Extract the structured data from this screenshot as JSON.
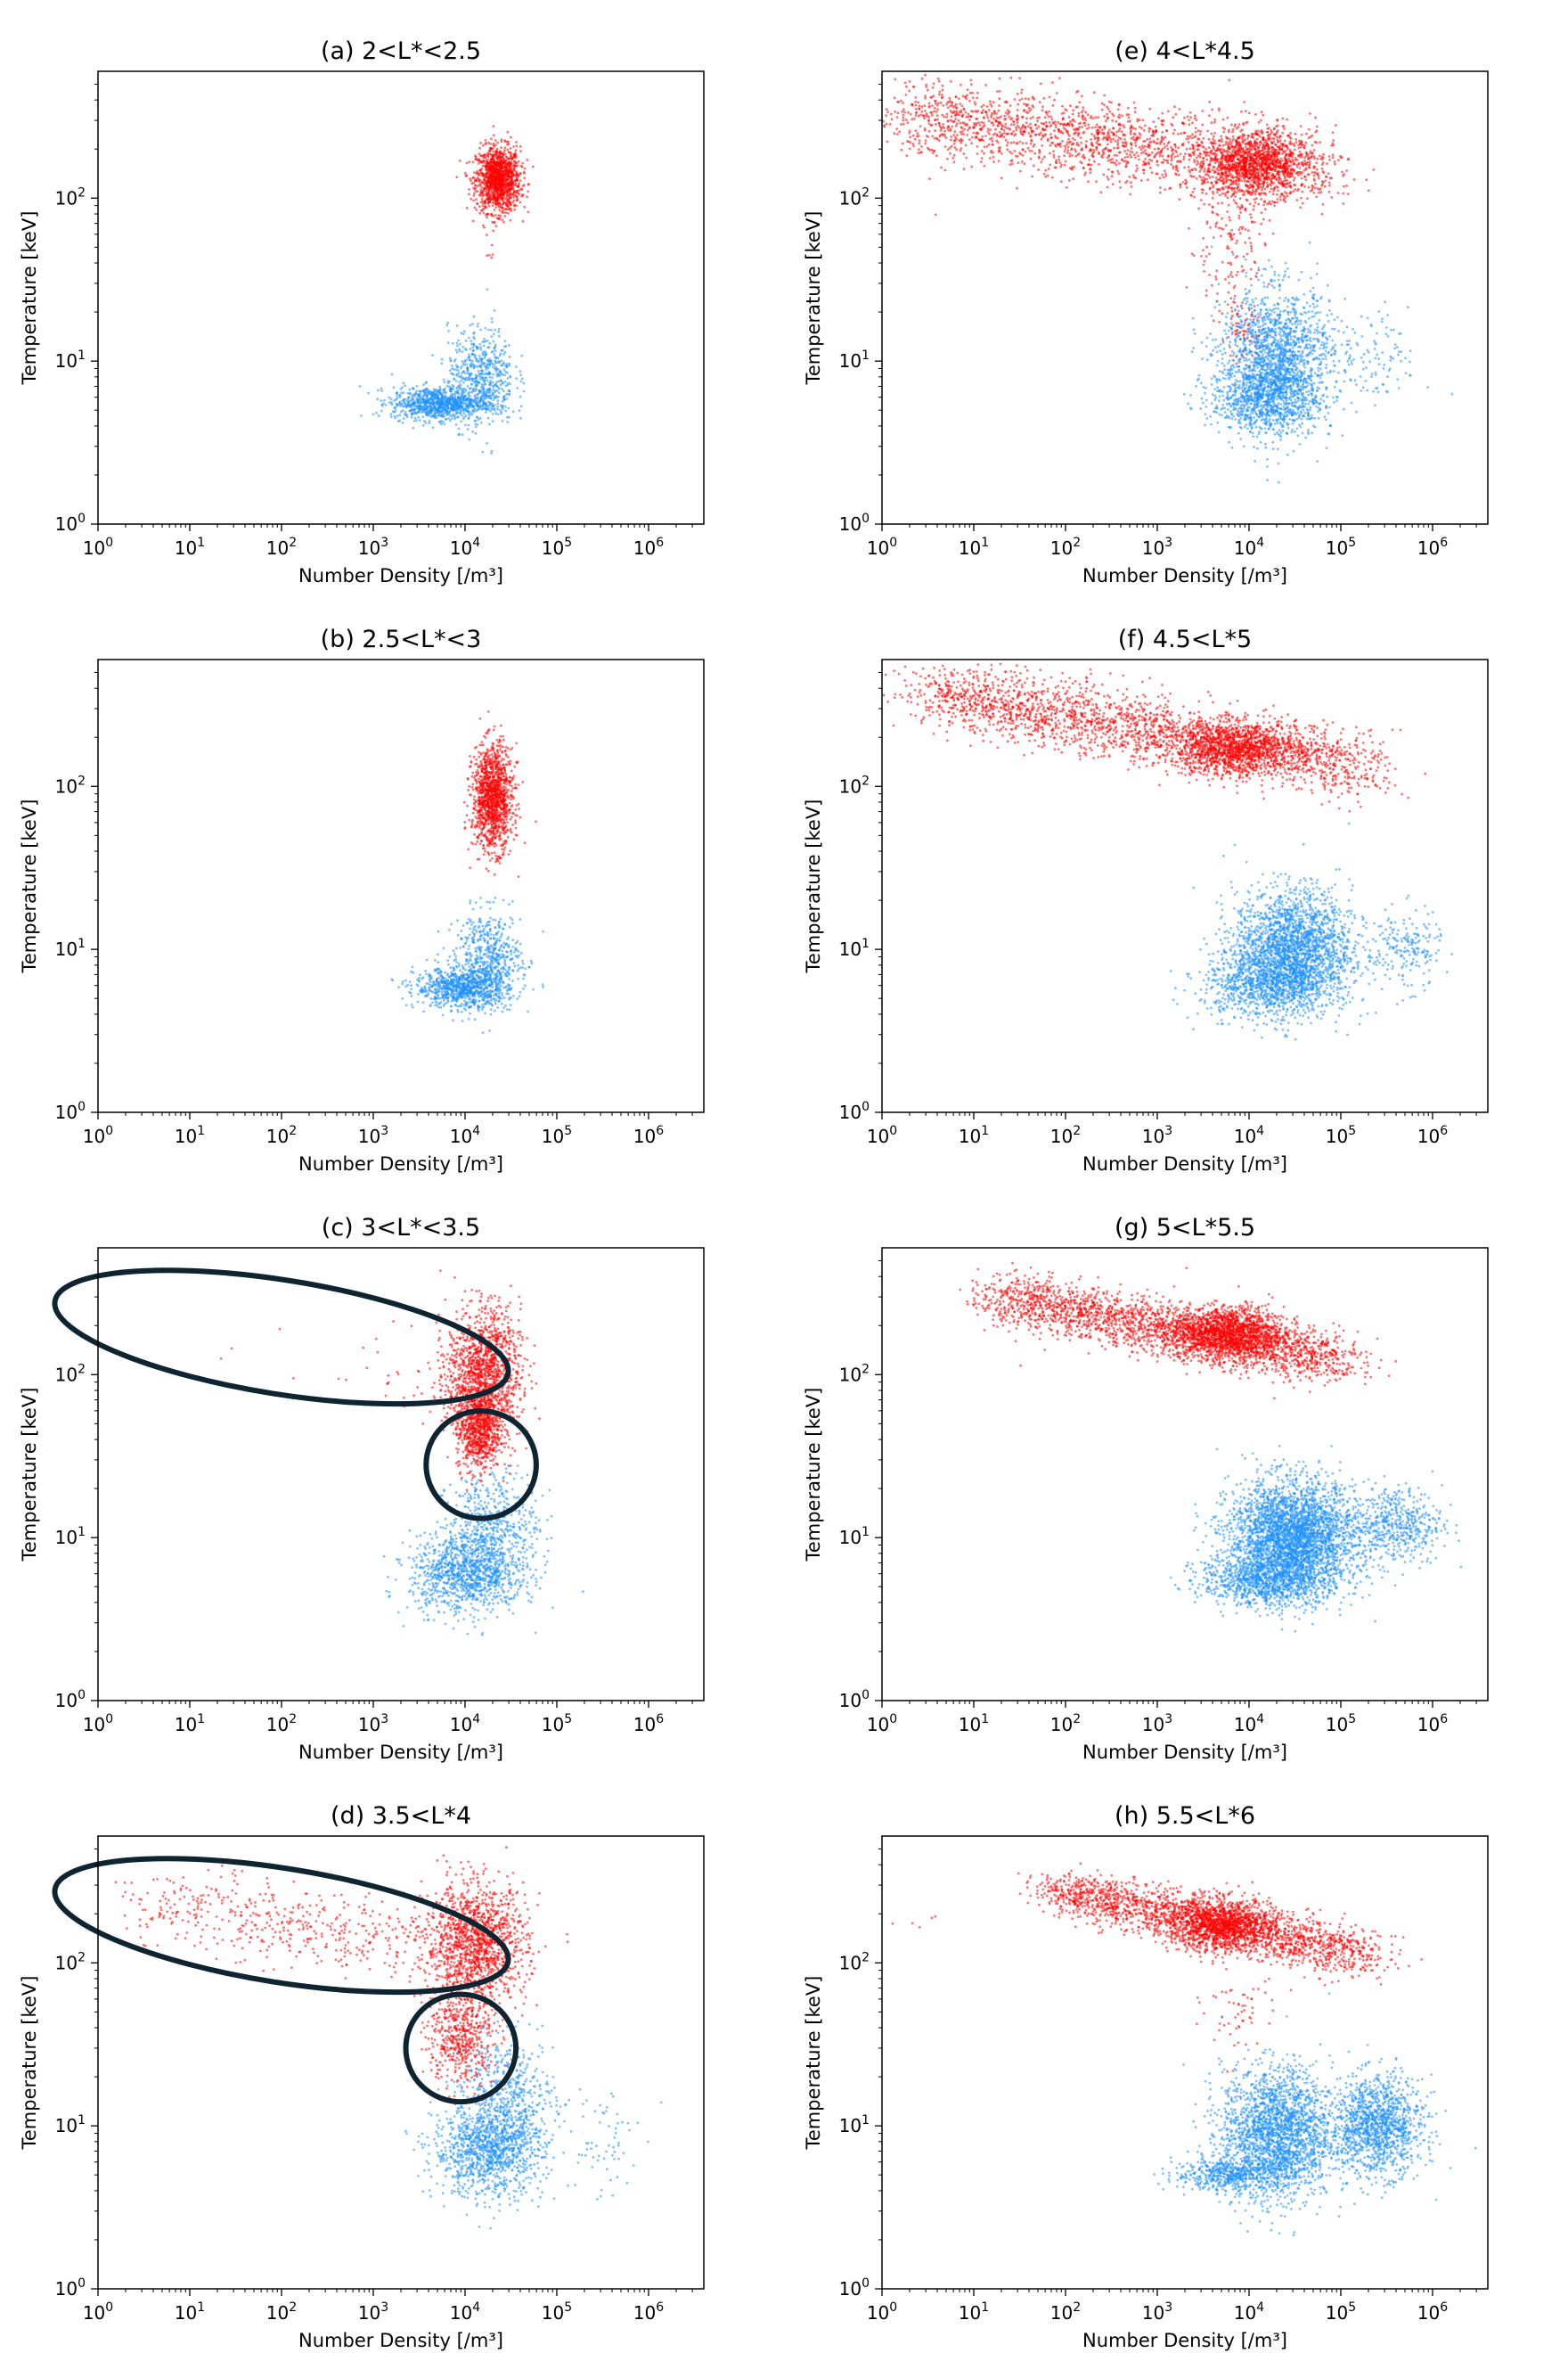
{
  "figure": {
    "colors": {
      "red_population": "#ff0000",
      "blue_population": "#1e90ff",
      "annotation": "#0f2431",
      "axes": "#000000"
    }
  },
  "chart_data": [
    {
      "type": "scatter",
      "panel": "a",
      "title": "(a) 2<L*<2.5",
      "xlabel": "Number Density [/m³]",
      "ylabel": "Temperature [keV]",
      "xscale": "log",
      "yscale": "log",
      "xlim": [
        1,
        4000000
      ],
      "ylim": [
        1,
        600
      ],
      "xticks": [
        1,
        10,
        100,
        1000,
        10000,
        100000,
        1000000
      ],
      "yticks": [
        1,
        10,
        100
      ],
      "series": [
        {
          "color": "red",
          "clusters": [
            {
              "center": [
                23000,
                130
              ],
              "spread_decades": [
                0.12,
                0.1
              ],
              "points": 1300
            },
            {
              "center": [
                19000,
                42
              ],
              "spread_decades": [
                0.05,
                0.03
              ],
              "points": 4
            }
          ]
        },
        {
          "color": "blue",
          "clusters": [
            {
              "center": [
                5000,
                5.5
              ],
              "spread_decades": [
                0.25,
                0.05
              ],
              "points": 900
            },
            {
              "center": [
                15000,
                8
              ],
              "spread_decades": [
                0.18,
                0.15
              ],
              "points": 600
            }
          ]
        }
      ]
    },
    {
      "type": "scatter",
      "panel": "b",
      "title": "(b) 2.5<L*<3",
      "xlabel": "Number Density [/m³]",
      "ylabel": "Temperature [keV]",
      "xscale": "log",
      "yscale": "log",
      "xlim": [
        1,
        4000000
      ],
      "ylim": [
        1,
        600
      ],
      "xticks": [
        1,
        10,
        100,
        1000,
        10000,
        100000,
        1000000
      ],
      "yticks": [
        1,
        10,
        100
      ],
      "series": [
        {
          "color": "red",
          "clusters": [
            {
              "center": [
                20000,
                85
              ],
              "spread_decades": [
                0.11,
                0.16
              ],
              "points": 1300
            }
          ]
        },
        {
          "color": "blue",
          "clusters": [
            {
              "center": [
                9000,
                5.8
              ],
              "spread_decades": [
                0.25,
                0.06
              ],
              "points": 800
            },
            {
              "center": [
                18000,
                8.5
              ],
              "spread_decades": [
                0.18,
                0.15
              ],
              "points": 600
            }
          ]
        }
      ]
    },
    {
      "type": "scatter",
      "panel": "c",
      "title": "(c) 3<L*<3.5",
      "xlabel": "Number Density [/m³]",
      "ylabel": "Temperature [keV]",
      "xscale": "log",
      "yscale": "log",
      "xlim": [
        1,
        4000000
      ],
      "ylim": [
        1,
        600
      ],
      "xticks": [
        1,
        10,
        100,
        1000,
        10000,
        100000,
        1000000
      ],
      "yticks": [
        1,
        10,
        100
      ],
      "series": [
        {
          "color": "red",
          "clusters": [
            {
              "center": [
                16000,
                100
              ],
              "spread_decades": [
                0.2,
                0.2
              ],
              "points": 1400
            },
            {
              "center": [
                14000,
                45
              ],
              "spread_decades": [
                0.12,
                0.12
              ],
              "points": 700
            },
            {
              "center": [
                2000,
                100
              ],
              "spread_decades": [
                0.45,
                0.15
              ],
              "points": 35
            },
            {
              "center": [
                100,
                140
              ],
              "spread_decades": [
                0.3,
                0.1
              ],
              "points": 4
            }
          ]
        },
        {
          "color": "blue",
          "clusters": [
            {
              "center": [
                10000,
                6
              ],
              "spread_decades": [
                0.3,
                0.12
              ],
              "points": 1000
            },
            {
              "center": [
                20000,
                11
              ],
              "spread_decades": [
                0.25,
                0.18
              ],
              "points": 600
            }
          ]
        }
      ],
      "annotations": [
        {
          "shape": "ellipse",
          "cx": 100,
          "cy": 170,
          "rx_decades": 2.5,
          "ry_decades": 0.35,
          "tilt_deg": 9
        },
        {
          "shape": "ellipse",
          "cx": 15000,
          "cy": 28,
          "rx_decades": 0.6,
          "ry_decades": 0.33,
          "tilt_deg": 0
        }
      ]
    },
    {
      "type": "scatter",
      "panel": "d",
      "title": "(d) 3.5<L*4",
      "xlabel": "Number Density [/m³]",
      "ylabel": "Temperature [keV]",
      "xscale": "log",
      "yscale": "log",
      "xlim": [
        1,
        4000000
      ],
      "ylim": [
        1,
        600
      ],
      "xticks": [
        1,
        10,
        100,
        1000,
        10000,
        100000,
        1000000
      ],
      "yticks": [
        1,
        10,
        100
      ],
      "series": [
        {
          "color": "red",
          "clusters": [
            {
              "center": [
                13000,
                130
              ],
              "spread_decades": [
                0.28,
                0.18
              ],
              "points": 1400
            },
            {
              "center": [
                9000,
                35
              ],
              "spread_decades": [
                0.18,
                0.15
              ],
              "points": 500
            },
            {
              "line": [
                [
                  4,
                  230
                ],
                [
                  3000,
                  130
                ]
              ],
              "spread_decades": [
                0.3,
                0.12
              ],
              "points": 450
            }
          ]
        },
        {
          "color": "blue",
          "clusters": [
            {
              "center": [
                18000,
                7
              ],
              "spread_decades": [
                0.3,
                0.14
              ],
              "points": 1100
            },
            {
              "center": [
                30000,
                15
              ],
              "spread_decades": [
                0.25,
                0.18
              ],
              "points": 500
            },
            {
              "center": [
                300000,
                8
              ],
              "spread_decades": [
                0.2,
                0.2
              ],
              "points": 60
            }
          ]
        }
      ],
      "annotations": [
        {
          "shape": "ellipse",
          "cx": 100,
          "cy": 170,
          "rx_decades": 2.5,
          "ry_decades": 0.35,
          "tilt_deg": 9
        },
        {
          "shape": "ellipse",
          "cx": 9000,
          "cy": 30,
          "rx_decades": 0.6,
          "ry_decades": 0.33,
          "tilt_deg": 0
        }
      ]
    },
    {
      "type": "scatter",
      "panel": "e",
      "title": "(e) 4<L*4.5",
      "xlabel": "Number Density [/m³]",
      "ylabel": "Temperature [keV]",
      "xscale": "log",
      "yscale": "log",
      "xlim": [
        1,
        4000000
      ],
      "ylim": [
        1,
        600
      ],
      "xticks": [
        1,
        10,
        100,
        1000,
        10000,
        100000,
        1000000
      ],
      "yticks": [
        1,
        10,
        100
      ],
      "series": [
        {
          "color": "red",
          "clusters": [
            {
              "line": [
                [
                  2,
                  320
                ],
                [
                  60000,
                  150
                ]
              ],
              "spread_decades": [
                0.25,
                0.12
              ],
              "points": 2000
            },
            {
              "center": [
                12000,
                160
              ],
              "spread_decades": [
                0.28,
                0.1
              ],
              "points": 1200
            },
            {
              "center": [
                6000,
                50
              ],
              "spread_decades": [
                0.22,
                0.22
              ],
              "points": 150
            },
            {
              "center": [
                8000,
                15
              ],
              "spread_decades": [
                0.1,
                0.08
              ],
              "points": 60
            }
          ]
        },
        {
          "color": "blue",
          "clusters": [
            {
              "center": [
                20000,
                10
              ],
              "spread_decades": [
                0.3,
                0.22
              ],
              "points": 1700
            },
            {
              "center": [
                15000,
                6
              ],
              "spread_decades": [
                0.3,
                0.1
              ],
              "points": 700
            },
            {
              "center": [
                200000,
                10
              ],
              "spread_decades": [
                0.3,
                0.15
              ],
              "points": 120
            }
          ]
        }
      ]
    },
    {
      "type": "scatter",
      "panel": "f",
      "title": "(f) 4.5<L*5",
      "xlabel": "Number Density [/m³]",
      "ylabel": "Temperature [keV]",
      "xscale": "log",
      "yscale": "log",
      "xlim": [
        1,
        4000000
      ],
      "ylim": [
        1,
        600
      ],
      "xticks": [
        1,
        10,
        100,
        1000,
        10000,
        100000,
        1000000
      ],
      "yticks": [
        1,
        10,
        100
      ],
      "series": [
        {
          "color": "red",
          "clusters": [
            {
              "line": [
                [
                  3,
                  380
                ],
                [
                  200000,
                  130
                ]
              ],
              "spread_decades": [
                0.25,
                0.1
              ],
              "points": 2300
            },
            {
              "center": [
                7000,
                170
              ],
              "spread_decades": [
                0.35,
                0.08
              ],
              "points": 1200
            }
          ]
        },
        {
          "color": "blue",
          "clusters": [
            {
              "center": [
                30000,
                10
              ],
              "spread_decades": [
                0.32,
                0.18
              ],
              "points": 2200
            },
            {
              "center": [
                15000,
                6
              ],
              "spread_decades": [
                0.35,
                0.1
              ],
              "points": 800
            },
            {
              "center": [
                500000,
                10
              ],
              "spread_decades": [
                0.2,
                0.12
              ],
              "points": 200
            }
          ]
        }
      ]
    },
    {
      "type": "scatter",
      "panel": "g",
      "title": "(g) 5<L*5.5",
      "xlabel": "Number Density [/m³]",
      "ylabel": "Temperature [keV]",
      "xscale": "log",
      "yscale": "log",
      "xlim": [
        1,
        4000000
      ],
      "ylim": [
        1,
        600
      ],
      "xticks": [
        1,
        10,
        100,
        1000,
        10000,
        100000,
        1000000
      ],
      "yticks": [
        1,
        10,
        100
      ],
      "series": [
        {
          "color": "red",
          "clusters": [
            {
              "line": [
                [
                  20,
                  300
                ],
                [
                  100000,
                  120
                ]
              ],
              "spread_decades": [
                0.25,
                0.08
              ],
              "points": 2300
            },
            {
              "center": [
                6000,
                180
              ],
              "spread_decades": [
                0.3,
                0.08
              ],
              "points": 1500
            }
          ]
        },
        {
          "color": "blue",
          "clusters": [
            {
              "center": [
                30000,
                10
              ],
              "spread_decades": [
                0.35,
                0.17
              ],
              "points": 3200
            },
            {
              "center": [
                15000,
                5.5
              ],
              "spread_decades": [
                0.35,
                0.08
              ],
              "points": 900
            },
            {
              "center": [
                400000,
                12
              ],
              "spread_decades": [
                0.25,
                0.12
              ],
              "points": 500
            }
          ]
        }
      ]
    },
    {
      "type": "scatter",
      "panel": "h",
      "title": "(h) 5.5<L*6",
      "xlabel": "Number Density [/m³]",
      "ylabel": "Temperature [keV]",
      "xscale": "log",
      "yscale": "log",
      "xlim": [
        1,
        4000000
      ],
      "ylim": [
        1,
        600
      ],
      "xticks": [
        1,
        10,
        100,
        1000,
        10000,
        100000,
        1000000
      ],
      "yticks": [
        1,
        10,
        100
      ],
      "series": [
        {
          "color": "red",
          "clusters": [
            {
              "line": [
                [
                  80,
                  280
                ],
                [
                  200000,
                  110
                ]
              ],
              "spread_decades": [
                0.22,
                0.07
              ],
              "points": 2000
            },
            {
              "center": [
                5000,
                170
              ],
              "spread_decades": [
                0.28,
                0.08
              ],
              "points": 1200
            },
            {
              "center": [
                8000,
                50
              ],
              "spread_decades": [
                0.2,
                0.15
              ],
              "points": 60
            },
            {
              "center": [
                3,
                170
              ],
              "spread_decades": [
                0.15,
                0.05
              ],
              "points": 5
            }
          ]
        },
        {
          "color": "blue",
          "clusters": [
            {
              "center": [
                20000,
                9
              ],
              "spread_decades": [
                0.3,
                0.2
              ],
              "points": 2200
            },
            {
              "center": [
                250000,
                10
              ],
              "spread_decades": [
                0.25,
                0.15
              ],
              "points": 1300
            },
            {
              "center": [
                6000,
                5
              ],
              "spread_decades": [
                0.3,
                0.05
              ],
              "points": 500
            }
          ]
        }
      ]
    }
  ]
}
